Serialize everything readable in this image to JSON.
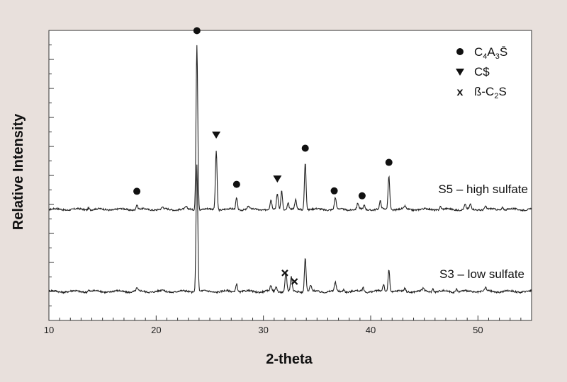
{
  "chart_data": {
    "type": "line",
    "xlabel": "2-theta",
    "ylabel": "Relative Intensity",
    "xlim": [
      10,
      55
    ],
    "x_ticks": [
      "10",
      "20",
      "30",
      "40",
      "50"
    ],
    "y_tick_labels_shown": false,
    "grid": false,
    "background": "#e8e0dc",
    "plot_background": "#ffffff",
    "line_color": "#222222",
    "series": [
      {
        "name": "S5 – high sulfate",
        "baseline_y": 0.2,
        "peaks": [
          {
            "x": 13.7,
            "y": 0.08
          },
          {
            "x": 18.2,
            "y": 0.18
          },
          {
            "x": 20.6,
            "y": 0.07
          },
          {
            "x": 22.8,
            "y": 0.08
          },
          {
            "x": 23.8,
            "y": 6.4
          },
          {
            "x": 25.6,
            "y": 2.3
          },
          {
            "x": 27.5,
            "y": 0.45
          },
          {
            "x": 28.6,
            "y": 0.12
          },
          {
            "x": 30.7,
            "y": 0.35
          },
          {
            "x": 31.3,
            "y": 0.6
          },
          {
            "x": 31.7,
            "y": 0.75
          },
          {
            "x": 32.3,
            "y": 0.25
          },
          {
            "x": 33.0,
            "y": 0.35
          },
          {
            "x": 33.9,
            "y": 1.85
          },
          {
            "x": 36.7,
            "y": 0.45
          },
          {
            "x": 38.8,
            "y": 0.22
          },
          {
            "x": 39.4,
            "y": 0.15
          },
          {
            "x": 40.9,
            "y": 0.3
          },
          {
            "x": 41.7,
            "y": 1.3
          },
          {
            "x": 43.2,
            "y": 0.1
          },
          {
            "x": 46.5,
            "y": 0.12
          },
          {
            "x": 48.8,
            "y": 0.18
          },
          {
            "x": 49.3,
            "y": 0.18
          },
          {
            "x": 50.7,
            "y": 0.12
          },
          {
            "x": 52.3,
            "y": 0.1
          }
        ]
      },
      {
        "name": "S3 – low sulfate",
        "baseline_y": 0.2,
        "peaks": [
          {
            "x": 13.7,
            "y": 0.06
          },
          {
            "x": 18.2,
            "y": 0.1
          },
          {
            "x": 20.6,
            "y": 0.05
          },
          {
            "x": 23.8,
            "y": 4.5
          },
          {
            "x": 27.5,
            "y": 0.3
          },
          {
            "x": 30.7,
            "y": 0.2
          },
          {
            "x": 31.2,
            "y": 0.18
          },
          {
            "x": 32.1,
            "y": 0.7
          },
          {
            "x": 32.6,
            "y": 0.5
          },
          {
            "x": 33.9,
            "y": 1.2
          },
          {
            "x": 34.4,
            "y": 0.2
          },
          {
            "x": 36.7,
            "y": 0.3
          },
          {
            "x": 37.5,
            "y": 0.1
          },
          {
            "x": 39.3,
            "y": 0.15
          },
          {
            "x": 41.2,
            "y": 0.25
          },
          {
            "x": 41.7,
            "y": 0.8
          },
          {
            "x": 43.2,
            "y": 0.1
          },
          {
            "x": 44.9,
            "y": 0.1
          },
          {
            "x": 45.8,
            "y": 0.12
          },
          {
            "x": 48.0,
            "y": 0.1
          },
          {
            "x": 50.7,
            "y": 0.12
          }
        ]
      }
    ],
    "annotations": [
      {
        "marker": "circle",
        "x": 18.2,
        "series": "S5 – high sulfate"
      },
      {
        "marker": "circle",
        "x": 23.8,
        "series": "S5 – high sulfate"
      },
      {
        "marker": "triangle-down",
        "x": 25.6,
        "series": "S5 – high sulfate"
      },
      {
        "marker": "circle",
        "x": 27.5,
        "series": "S5 – high sulfate"
      },
      {
        "marker": "triangle-down",
        "x": 31.3,
        "series": "S5 – high sulfate"
      },
      {
        "marker": "circle",
        "x": 33.9,
        "series": "S5 – high sulfate"
      },
      {
        "marker": "circle",
        "x": 36.6,
        "series": "S5 – high sulfate"
      },
      {
        "marker": "circle",
        "x": 39.2,
        "series": "S5 – high sulfate"
      },
      {
        "marker": "circle",
        "x": 41.7,
        "series": "S5 – high sulfate"
      },
      {
        "marker": "x",
        "x": 32.0,
        "series": "S3 – low sulfate"
      },
      {
        "marker": "x",
        "x": 32.9,
        "series": "S3 – low sulfate"
      }
    ],
    "legend": {
      "placement": "top-right",
      "entries": [
        {
          "marker": "circle",
          "label_main": "C",
          "sub1": "4",
          "mid": "A",
          "sub2": "3",
          "tail": "S̄"
        },
        {
          "marker": "triangle-down",
          "label_main": "C$"
        },
        {
          "marker": "x",
          "marker_text": "x",
          "label_main": "ß-C",
          "sub1": "2",
          "tail": "S"
        }
      ]
    }
  }
}
